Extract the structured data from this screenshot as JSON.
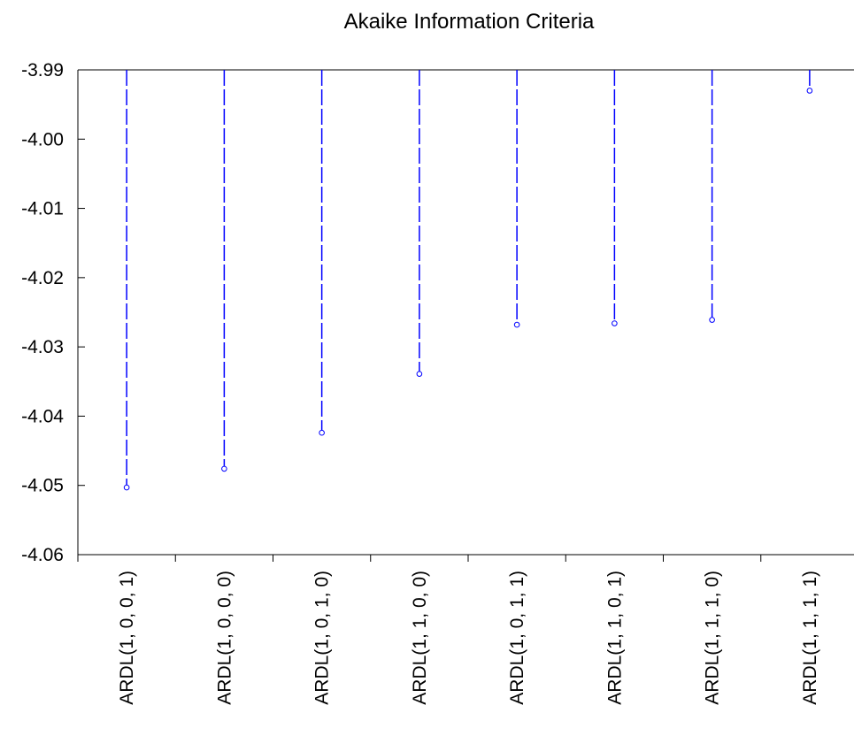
{
  "chart_data": {
    "type": "scatter",
    "title": "Akaike Information Criteria",
    "xlabel": "",
    "ylabel": "",
    "categories": [
      "ARDL(1, 0, 0, 1)",
      "ARDL(1, 0, 0, 0)",
      "ARDL(1, 0, 1, 0)",
      "ARDL(1, 1, 0, 0)",
      "ARDL(1, 0, 1, 1)",
      "ARDL(1, 1, 0, 1)",
      "ARDL(1, 1, 1, 0)",
      "ARDL(1, 1, 1, 1)"
    ],
    "values": [
      -4.0503,
      -4.0476,
      -4.0424,
      -4.0339,
      -4.0268,
      -4.0266,
      -4.0261,
      -3.993
    ],
    "ylim": [
      -4.06,
      -3.99
    ],
    "yticks": [
      "-3.99",
      "-4.00",
      "-4.01",
      "-4.02",
      "-4.03",
      "-4.04",
      "-4.05",
      "-4.06"
    ],
    "grid": false,
    "legend": "none",
    "style": "dashed drop lines from top axis to hollow circle markers",
    "colors": {
      "series": "#0000ff",
      "axis": "#000000"
    }
  }
}
